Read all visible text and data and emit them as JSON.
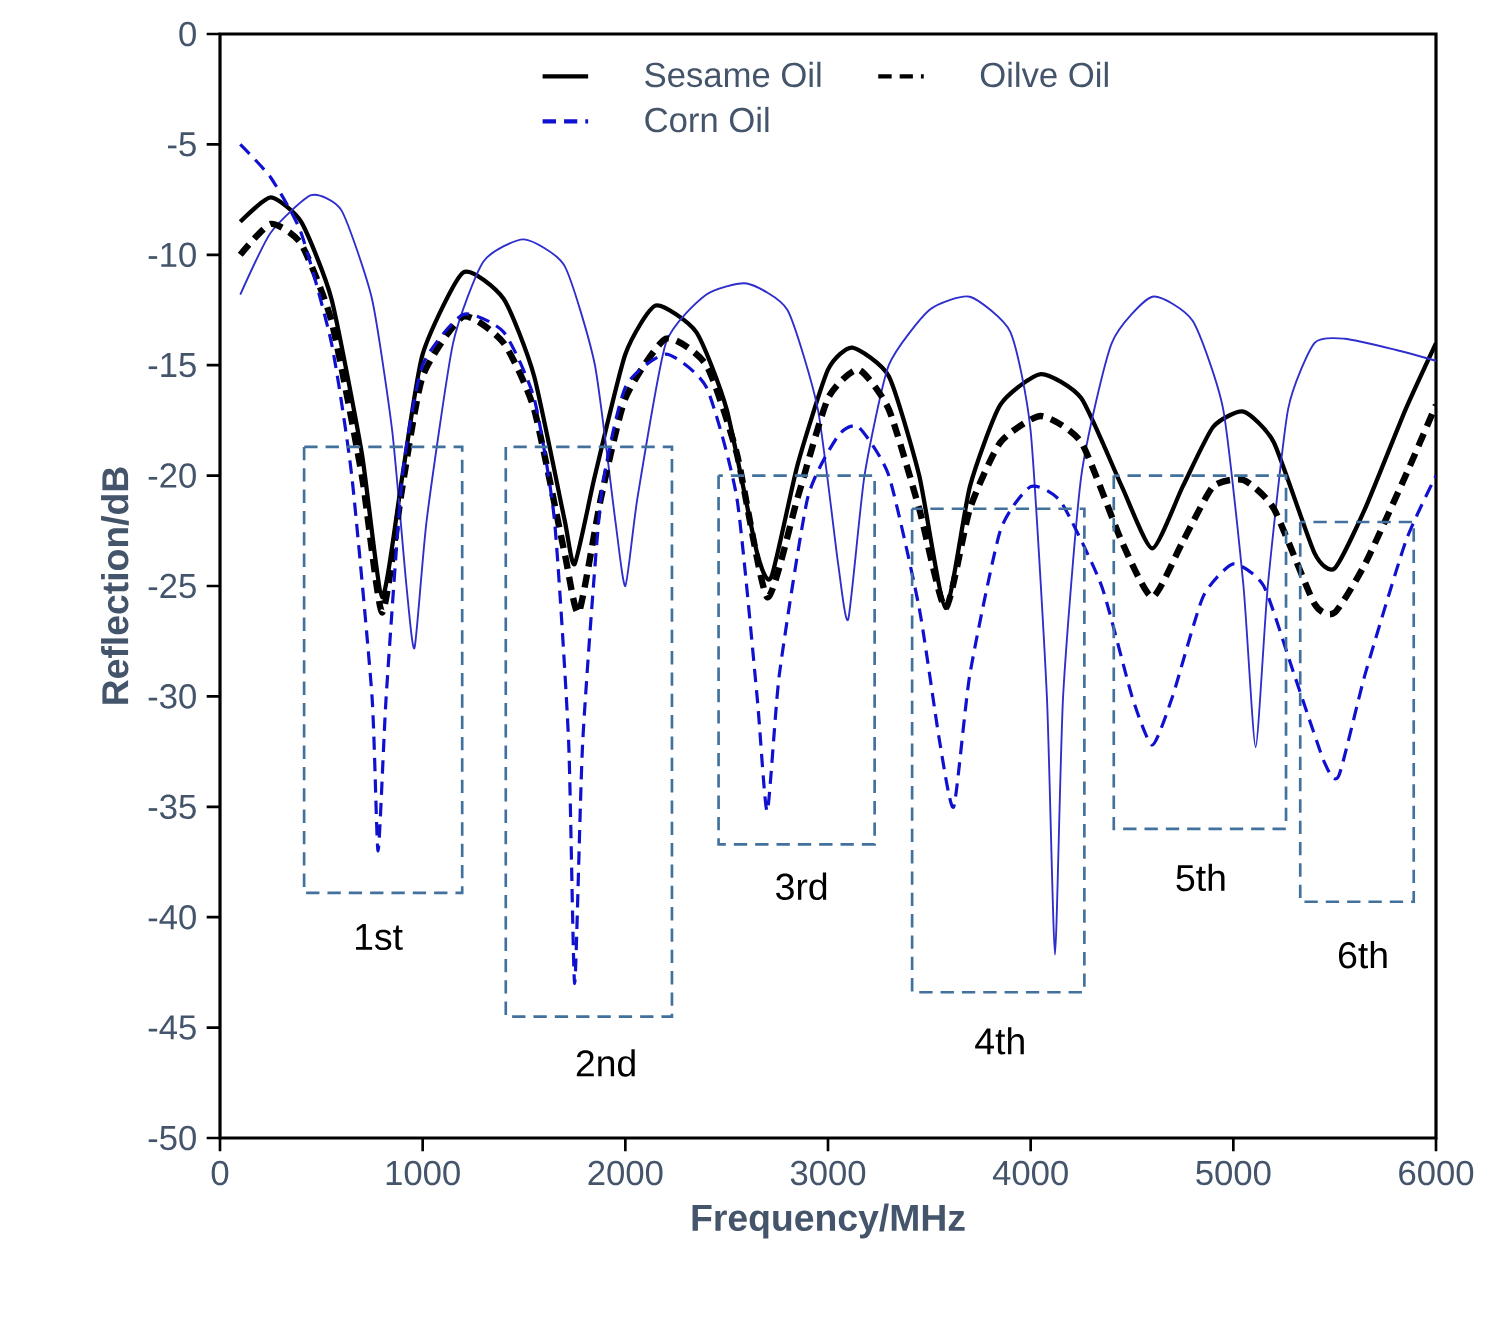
{
  "chart_data": {
    "type": "line",
    "xlabel": "Frequency/MHz",
    "ylabel": "Reflection/dB",
    "xlim": [
      0,
      6000
    ],
    "xticks": [
      0,
      1000,
      2000,
      3000,
      4000,
      5000,
      6000
    ],
    "ylim": [
      -50,
      0
    ],
    "yticks": [
      -50,
      -45,
      -40,
      -35,
      -30,
      -25,
      -20,
      -15,
      -10,
      -5,
      0
    ],
    "grid": false,
    "legend": "top",
    "marker": "none",
    "series": [
      {
        "name": "Sesame Oil",
        "color": "#000000",
        "line_style": "solid",
        "x": [
          100,
          250,
          400,
          550,
          700,
          800,
          900,
          1000,
          1200,
          1400,
          1550,
          1700,
          1750,
          1850,
          2000,
          2150,
          2350,
          2500,
          2650,
          2720,
          2850,
          3000,
          3120,
          3300,
          3450,
          3580,
          3700,
          3850,
          4050,
          4250,
          4450,
          4600,
          4750,
          4900,
          5050,
          5200,
          5400,
          5500,
          5650,
          5850,
          6000
        ],
        "values": [
          -8.5,
          -7.4,
          -8.5,
          -12,
          -19,
          -25.5,
          -20,
          -14.5,
          -10.8,
          -12,
          -15.5,
          -22,
          -24,
          -20,
          -14.5,
          -12.3,
          -13.5,
          -17,
          -23.5,
          -24.6,
          -19.5,
          -15.2,
          -14.2,
          -15.5,
          -20,
          -26,
          -20.5,
          -16.8,
          -15.4,
          -16.5,
          -20.5,
          -23.3,
          -20.5,
          -17.8,
          -17.1,
          -18.5,
          -23.5,
          -24.2,
          -21.5,
          -17,
          -14
        ]
      },
      {
        "color": "#2e2ecc",
        "line_style": "solid",
        "x": [
          100,
          250,
          450,
          600,
          750,
          850,
          920,
          960,
          1020,
          1150,
          1300,
          1500,
          1700,
          1850,
          1950,
          2000,
          2060,
          2200,
          2400,
          2600,
          2800,
          2950,
          3050,
          3100,
          3180,
          3300,
          3500,
          3700,
          3900,
          4000,
          4080,
          4120,
          4160,
          4250,
          4400,
          4600,
          4800,
          4950,
          5050,
          5110,
          5170,
          5270,
          5400,
          5550,
          5800,
          6000
        ],
        "values": [
          -11.8,
          -9,
          -7.3,
          -8,
          -12,
          -18,
          -25,
          -27.8,
          -22,
          -14,
          -10.3,
          -9.3,
          -10.5,
          -15,
          -22,
          -25,
          -21,
          -14,
          -11.8,
          -11.3,
          -12.5,
          -17,
          -24,
          -26.5,
          -20,
          -15,
          -12.5,
          -11.9,
          -13.5,
          -18,
          -30,
          -41.7,
          -30,
          -20,
          -14,
          -11.9,
          -13,
          -17,
          -25,
          -32.3,
          -25,
          -17,
          -14,
          -13.8,
          -14.3,
          -14.8
        ]
      },
      {
        "name": "Oilve Oil",
        "color": "#000000",
        "line_style": "dashed",
        "x": [
          100,
          250,
          400,
          550,
          700,
          800,
          900,
          1000,
          1200,
          1400,
          1550,
          1700,
          1770,
          1880,
          2000,
          2200,
          2400,
          2550,
          2700,
          2850,
          3000,
          3150,
          3300,
          3450,
          3580,
          3700,
          3850,
          4050,
          4250,
          4450,
          4600,
          4750,
          4900,
          5050,
          5200,
          5400,
          5500,
          5650,
          5850,
          6000
        ],
        "values": [
          -10,
          -8.6,
          -9.5,
          -13,
          -20,
          -26.2,
          -20.5,
          -15.5,
          -12.8,
          -14,
          -17,
          -23.5,
          -26.2,
          -21,
          -16.5,
          -13.8,
          -15,
          -19,
          -25.5,
          -21,
          -16.5,
          -15.2,
          -17,
          -21.5,
          -26,
          -21.5,
          -18.5,
          -17.3,
          -18.5,
          -23,
          -25.5,
          -23,
          -20.5,
          -20.2,
          -21.5,
          -25.8,
          -26.2,
          -24,
          -20,
          -16.8
        ]
      },
      {
        "name": "Corn Oil",
        "color": "#1010d0",
        "line_style": "dashed",
        "x": [
          100,
          250,
          400,
          550,
          650,
          750,
          780,
          820,
          900,
          1000,
          1200,
          1400,
          1550,
          1650,
          1720,
          1750,
          1790,
          1880,
          2000,
          2200,
          2400,
          2550,
          2650,
          2700,
          2760,
          2900,
          3050,
          3150,
          3300,
          3450,
          3550,
          3620,
          3700,
          3850,
          4000,
          4150,
          4350,
          4500,
          4600,
          4700,
          4850,
          5000,
          5150,
          5300,
          5450,
          5520,
          5650,
          5850,
          6000
        ],
        "values": [
          -5,
          -6.5,
          -9,
          -14,
          -20,
          -30,
          -37,
          -30,
          -20,
          -15,
          -12.7,
          -13.5,
          -16.5,
          -22,
          -32,
          -43,
          -32,
          -21,
          -16,
          -14.5,
          -16,
          -21,
          -30,
          -35.2,
          -29,
          -21,
          -18.2,
          -17.8,
          -20,
          -26,
          -32,
          -35,
          -29,
          -22.5,
          -20.5,
          -21.2,
          -25,
          -30,
          -32.2,
          -30,
          -25.5,
          -24,
          -25,
          -29,
          -33,
          -33.6,
          -29,
          -23,
          -20
        ]
      }
    ],
    "annotations": [
      "1st",
      "2nd",
      "3rd",
      "4th",
      "5th",
      "6th"
    ]
  }
}
